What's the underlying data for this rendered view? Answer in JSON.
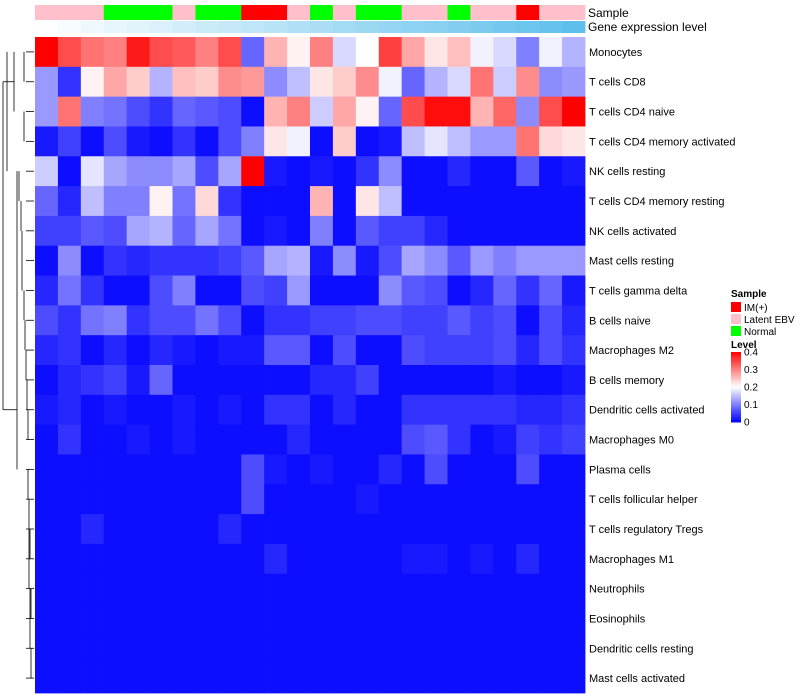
{
  "chart_data": {
    "type": "heatmap",
    "title": "",
    "annotation_titles": [
      "Sample",
      "Gene expression level"
    ],
    "rows": [
      "Monocytes",
      "T cells CD8",
      "T cells CD4 naive",
      "T cells CD4 memory activated",
      "NK cells resting",
      "T cells CD4 memory resting",
      "NK cells activated",
      "Mast cells resting",
      "T cells gamma delta",
      "B cells naive",
      "Macrophages M2",
      "B cells memory",
      "Dendritic cells activated",
      "Macrophages M0",
      "Plasma cells",
      "T cells follicular helper",
      "T cells regulatory  Tregs",
      "Macrophages M1",
      "Neutrophils",
      "Eosinophils",
      "Dendritic cells resting",
      "Mast cells activated"
    ],
    "sample_groups": [
      "Latent EBV",
      "Latent EBV",
      "Latent EBV",
      "Normal",
      "Normal",
      "Normal",
      "Latent EBV",
      "Normal",
      "Normal",
      "IM(+)",
      "IM(+)",
      "Latent EBV",
      "Normal",
      "Latent EBV",
      "Normal",
      "Normal",
      "Latent EBV",
      "Latent EBV",
      "Normal",
      "Latent EBV",
      "Latent EBV",
      "IM(+)",
      "Latent EBV",
      "Latent EBV"
    ],
    "expression_level": [
      0.02,
      0.06,
      0.1,
      0.14,
      0.18,
      0.22,
      0.26,
      0.3,
      0.34,
      0.38,
      0.42,
      0.46,
      0.5,
      0.54,
      0.58,
      0.62,
      0.66,
      0.7,
      0.74,
      0.78,
      0.82,
      0.86,
      0.9,
      0.95
    ],
    "values": [
      [
        0.4,
        0.34,
        0.31,
        0.3,
        0.38,
        0.34,
        0.33,
        0.3,
        0.34,
        0.08,
        0.26,
        0.21,
        0.3,
        0.17,
        0.2,
        0.35,
        0.27,
        0.22,
        0.25,
        0.19,
        0.17,
        0.1,
        0.19,
        0.14
      ],
      [
        0.12,
        0.04,
        0.21,
        0.27,
        0.24,
        0.14,
        0.25,
        0.24,
        0.29,
        0.28,
        0.11,
        0.15,
        0.22,
        0.24,
        0.29,
        0.19,
        0.08,
        0.14,
        0.17,
        0.31,
        0.16,
        0.29,
        0.11,
        0.12
      ],
      [
        0.12,
        0.31,
        0.1,
        0.09,
        0.06,
        0.04,
        0.08,
        0.07,
        0.06,
        0.01,
        0.26,
        0.3,
        0.16,
        0.27,
        0.21,
        0.08,
        0.34,
        0.39,
        0.39,
        0.26,
        0.32,
        0.11,
        0.34,
        0.4
      ],
      [
        0.02,
        0.05,
        0.01,
        0.06,
        0.02,
        0.01,
        0.04,
        0.01,
        0.06,
        0.1,
        0.22,
        0.19,
        0.01,
        0.24,
        0.01,
        0.02,
        0.15,
        0.18,
        0.15,
        0.12,
        0.12,
        0.31,
        0.23,
        0.22
      ],
      [
        0.16,
        0.01,
        0.18,
        0.13,
        0.11,
        0.11,
        0.13,
        0.06,
        0.13,
        0.4,
        0.02,
        0.01,
        0.02,
        0.01,
        0.04,
        0.11,
        0.01,
        0.01,
        0.03,
        0.01,
        0.01,
        0.07,
        0.01,
        0.02
      ],
      [
        0.08,
        0.03,
        0.15,
        0.1,
        0.1,
        0.21,
        0.09,
        0.23,
        0.04,
        0.01,
        0.01,
        0.01,
        0.26,
        0.01,
        0.22,
        0.15,
        0.01,
        0.01,
        0.01,
        0.01,
        0.01,
        0.01,
        0.01,
        0.01
      ],
      [
        0.05,
        0.05,
        0.07,
        0.06,
        0.13,
        0.14,
        0.08,
        0.13,
        0.09,
        0.01,
        0.02,
        0.01,
        0.1,
        0.01,
        0.07,
        0.05,
        0.05,
        0.03,
        0.01,
        0.01,
        0.01,
        0.01,
        0.01,
        0.01
      ],
      [
        0.01,
        0.11,
        0.01,
        0.04,
        0.03,
        0.04,
        0.04,
        0.04,
        0.05,
        0.07,
        0.13,
        0.14,
        0.02,
        0.11,
        0.02,
        0.06,
        0.13,
        0.11,
        0.07,
        0.12,
        0.1,
        0.12,
        0.12,
        0.12
      ],
      [
        0.03,
        0.09,
        0.04,
        0.01,
        0.01,
        0.06,
        0.1,
        0.01,
        0.01,
        0.06,
        0.05,
        0.12,
        0.01,
        0.01,
        0.01,
        0.11,
        0.07,
        0.06,
        0.01,
        0.03,
        0.08,
        0.04,
        0.08,
        0.02
      ],
      [
        0.06,
        0.04,
        0.09,
        0.1,
        0.04,
        0.06,
        0.06,
        0.09,
        0.06,
        0.01,
        0.04,
        0.04,
        0.05,
        0.05,
        0.06,
        0.06,
        0.05,
        0.05,
        0.07,
        0.05,
        0.06,
        0.01,
        0.06,
        0.03
      ],
      [
        0.03,
        0.04,
        0.01,
        0.03,
        0.01,
        0.03,
        0.02,
        0.01,
        0.02,
        0.02,
        0.07,
        0.07,
        0.01,
        0.06,
        0.01,
        0.01,
        0.06,
        0.05,
        0.05,
        0.05,
        0.06,
        0.03,
        0.06,
        0.04
      ],
      [
        0.01,
        0.03,
        0.04,
        0.05,
        0.02,
        0.08,
        0.01,
        0.01,
        0.01,
        0.01,
        0.01,
        0.01,
        0.03,
        0.03,
        0.05,
        0.01,
        0.01,
        0.01,
        0.01,
        0.01,
        0.02,
        0.01,
        0.01,
        0.02
      ],
      [
        0.02,
        0.03,
        0.01,
        0.02,
        0.01,
        0.01,
        0.02,
        0.01,
        0.02,
        0.01,
        0.04,
        0.04,
        0.01,
        0.03,
        0.01,
        0.01,
        0.04,
        0.04,
        0.04,
        0.04,
        0.04,
        0.03,
        0.03,
        0.04
      ],
      [
        0.01,
        0.04,
        0.01,
        0.01,
        0.02,
        0.01,
        0.02,
        0.01,
        0.01,
        0.01,
        0.01,
        0.03,
        0.01,
        0.01,
        0.01,
        0.01,
        0.06,
        0.07,
        0.04,
        0.01,
        0.02,
        0.05,
        0.04,
        0.05
      ],
      [
        0.01,
        0.01,
        0.01,
        0.01,
        0.01,
        0.01,
        0.01,
        0.01,
        0.01,
        0.06,
        0.02,
        0.01,
        0.02,
        0.01,
        0.01,
        0.03,
        0.01,
        0.06,
        0.01,
        0.01,
        0.01,
        0.06,
        0.01,
        0.01
      ],
      [
        0.01,
        0.01,
        0.01,
        0.01,
        0.01,
        0.01,
        0.01,
        0.01,
        0.01,
        0.06,
        0.01,
        0.01,
        0.01,
        0.01,
        0.02,
        0.01,
        0.01,
        0.01,
        0.01,
        0.01,
        0.01,
        0.01,
        0.01,
        0.01
      ],
      [
        0.01,
        0.01,
        0.03,
        0.01,
        0.01,
        0.01,
        0.01,
        0.01,
        0.03,
        0.01,
        0.01,
        0.01,
        0.01,
        0.01,
        0.01,
        0.01,
        0.01,
        0.01,
        0.01,
        0.01,
        0.01,
        0.01,
        0.01,
        0.01
      ],
      [
        0.01,
        0.01,
        0.01,
        0.01,
        0.01,
        0.01,
        0.01,
        0.01,
        0.01,
        0.01,
        0.03,
        0.01,
        0.01,
        0.01,
        0.01,
        0.01,
        0.02,
        0.02,
        0.01,
        0.02,
        0.01,
        0.03,
        0.01,
        0.01
      ],
      [
        0.01,
        0.01,
        0.01,
        0.01,
        0.01,
        0.01,
        0.01,
        0.01,
        0.01,
        0.01,
        0.01,
        0.01,
        0.01,
        0.01,
        0.01,
        0.01,
        0.01,
        0.01,
        0.01,
        0.01,
        0.01,
        0.01,
        0.01,
        0.01
      ],
      [
        0.01,
        0.01,
        0.01,
        0.01,
        0.01,
        0.01,
        0.01,
        0.01,
        0.01,
        0.01,
        0.01,
        0.01,
        0.01,
        0.01,
        0.01,
        0.01,
        0.01,
        0.01,
        0.01,
        0.01,
        0.01,
        0.01,
        0.01,
        0.01
      ],
      [
        0.01,
        0.01,
        0.01,
        0.01,
        0.01,
        0.01,
        0.01,
        0.01,
        0.01,
        0.01,
        0.01,
        0.01,
        0.01,
        0.01,
        0.01,
        0.01,
        0.01,
        0.01,
        0.01,
        0.01,
        0.01,
        0.01,
        0.01,
        0.01
      ],
      [
        0.01,
        0.01,
        0.01,
        0.01,
        0.01,
        0.01,
        0.01,
        0.01,
        0.01,
        0.01,
        0.01,
        0.01,
        0.01,
        0.01,
        0.01,
        0.01,
        0.01,
        0.01,
        0.01,
        0.01,
        0.01,
        0.01,
        0.01,
        0.01
      ]
    ],
    "color_scale": {
      "low": "#0000FF",
      "mid": "#FFFFFF",
      "high": "#FF0000",
      "domain": [
        0,
        0.2,
        0.4
      ]
    },
    "legend_sample": {
      "title": "Sample",
      "entries": [
        {
          "label": "IM(+)",
          "color": "#FF0000"
        },
        {
          "label": "Latent EBV",
          "color": "#FFC0CB"
        },
        {
          "label": "Normal",
          "color": "#00FF00"
        }
      ]
    },
    "legend_level": {
      "title": "Level",
      "ticks": [
        {
          "label": "0.4",
          "value": 0.4
        },
        {
          "label": "0.3",
          "value": 0.3
        },
        {
          "label": "0.2",
          "value": 0.2
        },
        {
          "label": "0.1",
          "value": 0.1
        },
        {
          "label": "0",
          "value": 0
        }
      ]
    },
    "expression_colors": {
      "low": "#FFFFFF",
      "high": "#56BCEB"
    },
    "legend_position": "right",
    "row_dendrogram": true
  }
}
